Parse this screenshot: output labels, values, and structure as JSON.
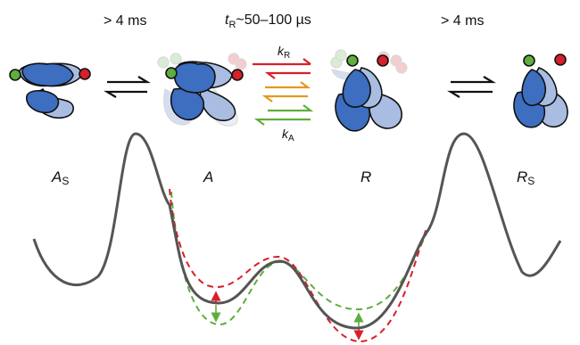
{
  "header": {
    "left_time": "> 4 ms",
    "center_time_symbol": "t",
    "center_time_sub": "R",
    "center_time_value": "~50–100 µs",
    "right_time": "> 4 ms"
  },
  "states": [
    {
      "main": "A",
      "sub": "S"
    },
    {
      "main": "A",
      "sub": ""
    },
    {
      "main": "R",
      "sub": ""
    },
    {
      "main": "R",
      "sub": "S"
    }
  ],
  "rates": {
    "forward": {
      "main": "k",
      "sub": "R"
    },
    "backward": {
      "main": "k",
      "sub": "A"
    }
  },
  "colors": {
    "curve": "#555555",
    "red": "#d6202a",
    "green": "#5fae3e",
    "orange": "#e39a1d",
    "blue_dark": "#3d6ec0",
    "blue_light": "#a9bde2",
    "outline": "#111111"
  }
}
